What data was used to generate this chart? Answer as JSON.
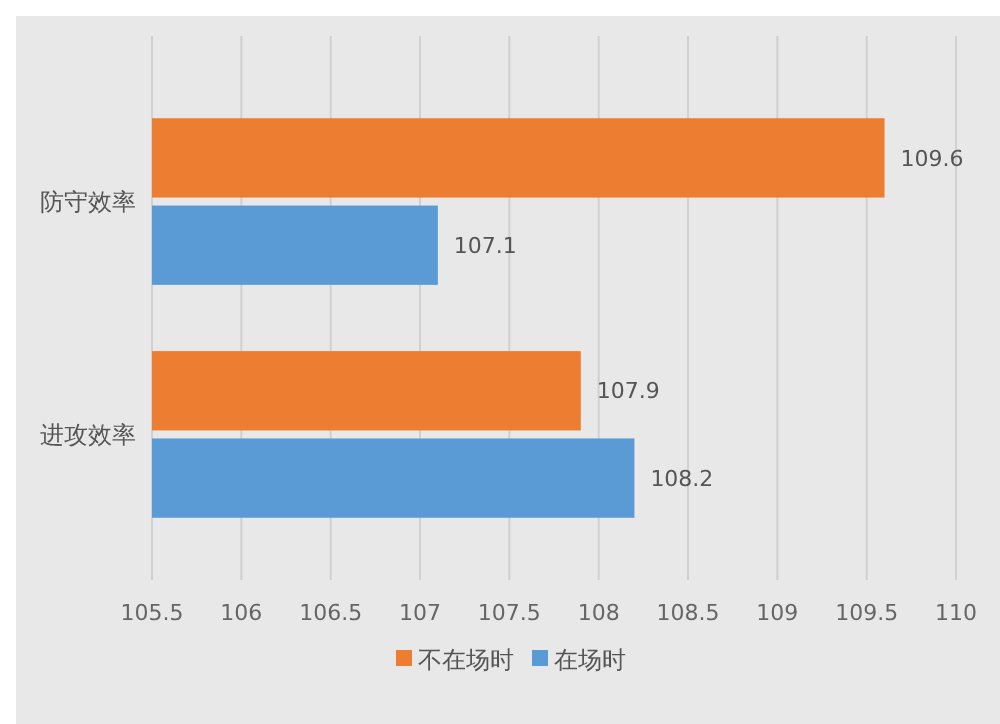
{
  "chart_data": {
    "type": "bar",
    "orientation": "horizontal",
    "categories": [
      "防守效率",
      "进攻效率"
    ],
    "series": [
      {
        "name": "不在场时",
        "color": "#ed7d31",
        "values": [
          109.6,
          107.9
        ]
      },
      {
        "name": "在场时",
        "color": "#5b9bd5",
        "values": [
          107.1,
          108.2
        ]
      }
    ],
    "xlim": [
      105.5,
      110
    ],
    "xticks": [
      105.5,
      106,
      106.5,
      107,
      107.5,
      108,
      108.5,
      109,
      109.5,
      110
    ],
    "grid": "x",
    "legend": "bottom",
    "data_labels": true
  }
}
